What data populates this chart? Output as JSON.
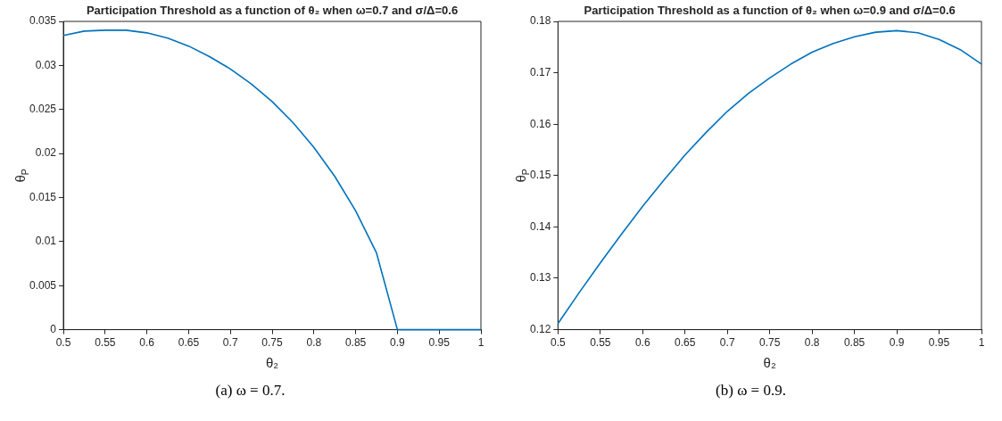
{
  "chart_data": [
    {
      "type": "line",
      "title": "Participation Threshold as a function of θ₂ when ω=0.7 and σ/Δ=0.6",
      "xlabel": "θ₂",
      "ylabel": "θ$_{P}$",
      "x": [
        0.5,
        0.525,
        0.55,
        0.575,
        0.6,
        0.625,
        0.65,
        0.675,
        0.7,
        0.725,
        0.75,
        0.775,
        0.8,
        0.825,
        0.85,
        0.875,
        0.9,
        0.925,
        0.95,
        0.975,
        1.0
      ],
      "series": [
        {
          "color": "#0072bd",
          "values": [
            0.0334,
            0.0339,
            0.034,
            0.034,
            0.0337,
            0.0331,
            0.0322,
            0.031,
            0.0296,
            0.0279,
            0.0259,
            0.0235,
            0.0207,
            0.0174,
            0.0135,
            0.0087,
            0.0,
            0.0,
            0.0,
            0.0,
            0.0
          ]
        }
      ],
      "xlim": [
        0.5,
        1
      ],
      "xticks": [
        0.5,
        0.55,
        0.6,
        0.65,
        0.7,
        0.75,
        0.8,
        0.85,
        0.9,
        0.95,
        1
      ],
      "ylim": [
        0,
        0.035
      ],
      "yticks": [
        0,
        0.005,
        0.01,
        0.015,
        0.02,
        0.025,
        0.03,
        0.035
      ],
      "grid": false,
      "legend": false,
      "annotations": [
        "(a) ω = 0.7."
      ]
    },
    {
      "type": "line",
      "title": "Participation Threshold as a function of θ₂ when ω=0.9 and σ/Δ=0.6",
      "xlabel": "θ₂",
      "ylabel": "θ$_{P}$",
      "x": [
        0.5,
        0.525,
        0.55,
        0.575,
        0.6,
        0.625,
        0.65,
        0.675,
        0.7,
        0.725,
        0.75,
        0.775,
        0.8,
        0.825,
        0.85,
        0.875,
        0.9,
        0.925,
        0.95,
        0.975,
        1.0
      ],
      "series": [
        {
          "color": "#0072bd",
          "values": [
            0.1212,
            0.1272,
            0.133,
            0.1386,
            0.144,
            0.1491,
            0.154,
            0.1584,
            0.1625,
            0.166,
            0.169,
            0.1717,
            0.174,
            0.1757,
            0.177,
            0.1779,
            0.1782,
            0.1778,
            0.1765,
            0.1745,
            0.1717
          ]
        }
      ],
      "xlim": [
        0.5,
        1
      ],
      "xticks": [
        0.5,
        0.55,
        0.6,
        0.65,
        0.7,
        0.75,
        0.8,
        0.85,
        0.9,
        0.95,
        1
      ],
      "ylim": [
        0.12,
        0.18
      ],
      "yticks": [
        0.12,
        0.13,
        0.14,
        0.15,
        0.16,
        0.17,
        0.18
      ],
      "grid": false,
      "legend": false,
      "annotations": [
        "(b) ω = 0.9."
      ]
    }
  ]
}
